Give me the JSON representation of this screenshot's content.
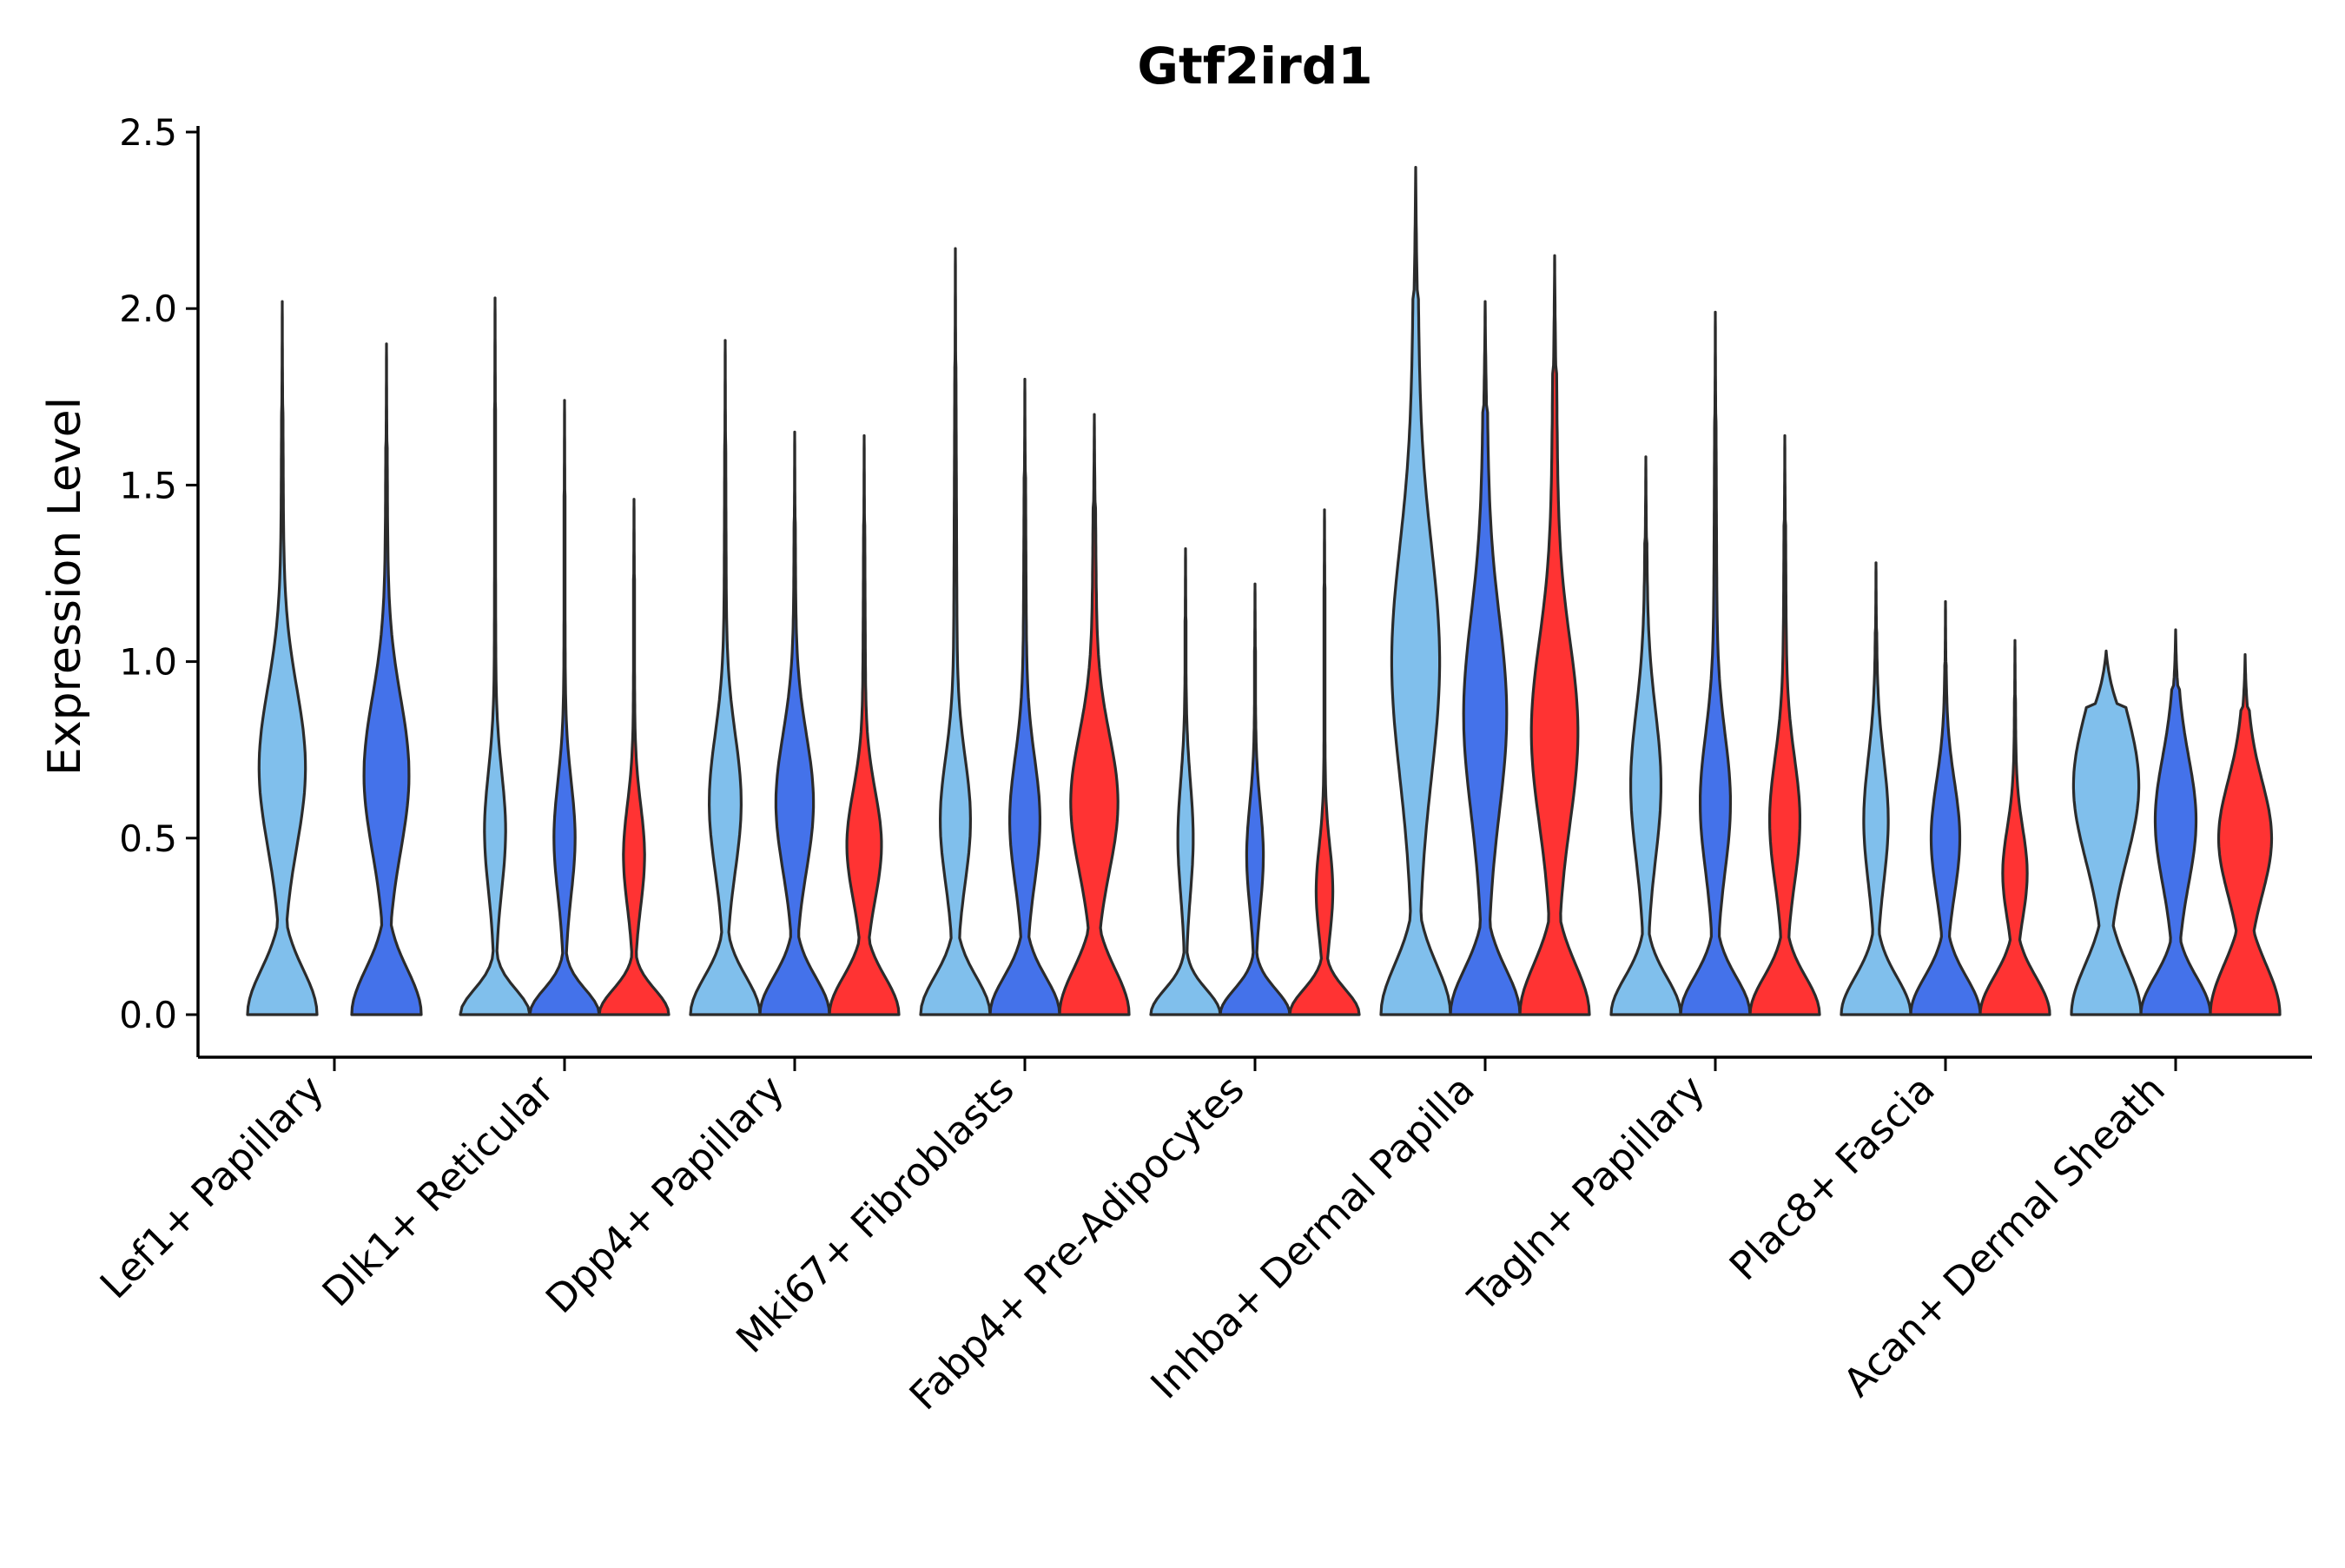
{
  "chart_data": {
    "type": "violin",
    "title": "Gtf2ird1",
    "xlabel": "",
    "ylabel": "Expression Level",
    "ylim": [
      0,
      2.5
    ],
    "yticks": [
      "0.0",
      "0.5",
      "1.0",
      "1.5",
      "2.0",
      "2.5"
    ],
    "ytick_values": [
      0,
      0.5,
      1.0,
      1.5,
      2.0,
      2.5
    ],
    "groups": {
      "light": "#80BFEC",
      "medium": "#4472EA",
      "red": "#FF3333"
    },
    "categories": [
      {
        "label": "Lef1+ Papillary",
        "violins": [
          {
            "group": "light",
            "max": 2.02,
            "peak_low": 0.18,
            "mode": 0.7,
            "mode_strength": 0.62,
            "tail": 0.12
          },
          {
            "group": "medium",
            "max": 1.9,
            "peak_low": 0.18,
            "mode": 0.68,
            "mode_strength": 0.6,
            "tail": 0.12
          }
        ]
      },
      {
        "label": "Dlk1+ Reticular",
        "violins": [
          {
            "group": "light",
            "max": 2.03,
            "peak_low": 0.1,
            "mode": 0.52,
            "mode_strength": 0.28,
            "tail": 0.06
          },
          {
            "group": "medium",
            "max": 1.74,
            "peak_low": 0.1,
            "mode": 0.5,
            "mode_strength": 0.28,
            "tail": 0.06
          },
          {
            "group": "red",
            "max": 1.46,
            "peak_low": 0.1,
            "mode": 0.45,
            "mode_strength": 0.28,
            "tail": 0.06
          }
        ]
      },
      {
        "label": "Dpp4+ Papillary",
        "violins": [
          {
            "group": "light",
            "max": 1.91,
            "peak_low": 0.15,
            "mode": 0.6,
            "mode_strength": 0.42,
            "tail": 0.1
          },
          {
            "group": "medium",
            "max": 1.65,
            "peak_low": 0.15,
            "mode": 0.6,
            "mode_strength": 0.5,
            "tail": 0.1
          },
          {
            "group": "red",
            "max": 1.64,
            "peak_low": 0.15,
            "mode": 0.48,
            "mode_strength": 0.45,
            "tail": 0.12
          }
        ]
      },
      {
        "label": "Mki67+ Fibroblasts",
        "violins": [
          {
            "group": "light",
            "max": 2.17,
            "peak_low": 0.15,
            "mode": 0.55,
            "mode_strength": 0.38,
            "tail": 0.14
          },
          {
            "group": "medium",
            "max": 1.8,
            "peak_low": 0.15,
            "mode": 0.55,
            "mode_strength": 0.38,
            "tail": 0.14
          },
          {
            "group": "red",
            "max": 1.7,
            "peak_low": 0.18,
            "mode": 0.6,
            "mode_strength": 0.6,
            "tail": 0.2
          }
        ]
      },
      {
        "label": "Fabp4+ Pre-Adipocytes",
        "violins": [
          {
            "group": "light",
            "max": 1.32,
            "peak_low": 0.1,
            "mode": 0.5,
            "mode_strength": 0.2,
            "tail": 0.05
          },
          {
            "group": "medium",
            "max": 1.22,
            "peak_low": 0.1,
            "mode": 0.45,
            "mode_strength": 0.22,
            "tail": 0.05
          },
          {
            "group": "red",
            "max": 1.43,
            "peak_low": 0.1,
            "mode": 0.35,
            "mode_strength": 0.22,
            "tail": 0.05
          }
        ]
      },
      {
        "label": "Inhba+ Dermal Papilla",
        "violins": [
          {
            "group": "light",
            "max": 2.4,
            "peak_low": 0.2,
            "mode": 1.0,
            "mode_strength": 0.55,
            "tail": 0.35
          },
          {
            "group": "medium",
            "max": 2.02,
            "peak_low": 0.18,
            "mode": 0.85,
            "mode_strength": 0.5,
            "tail": 0.3
          },
          {
            "group": "red",
            "max": 2.15,
            "peak_low": 0.2,
            "mode": 0.8,
            "mode_strength": 0.55,
            "tail": 0.3
          }
        ]
      },
      {
        "label": "Tagln+ Papillary",
        "violins": [
          {
            "group": "light",
            "max": 1.58,
            "peak_low": 0.15,
            "mode": 0.65,
            "mode_strength": 0.38,
            "tail": 0.14
          },
          {
            "group": "medium",
            "max": 1.99,
            "peak_low": 0.15,
            "mode": 0.6,
            "mode_strength": 0.38,
            "tail": 0.14
          },
          {
            "group": "red",
            "max": 1.64,
            "peak_low": 0.15,
            "mode": 0.55,
            "mode_strength": 0.38,
            "tail": 0.14
          }
        ]
      },
      {
        "label": "Plac8+ Fascia",
        "violins": [
          {
            "group": "light",
            "max": 1.28,
            "peak_low": 0.15,
            "mode": 0.55,
            "mode_strength": 0.32,
            "tail": 0.08
          },
          {
            "group": "medium",
            "max": 1.17,
            "peak_low": 0.15,
            "mode": 0.5,
            "mode_strength": 0.38,
            "tail": 0.08
          },
          {
            "group": "red",
            "max": 1.06,
            "peak_low": 0.15,
            "mode": 0.4,
            "mode_strength": 0.32,
            "tail": 0.08
          }
        ]
      },
      {
        "label": "Acan+ Dermal Sheath",
        "violins": [
          {
            "group": "light",
            "max": 1.03,
            "peak_low": 0.2,
            "mode": 0.65,
            "mode_strength": 0.82,
            "tail": 0.3
          },
          {
            "group": "medium",
            "max": 1.09,
            "peak_low": 0.15,
            "mode": 0.55,
            "mode_strength": 0.5,
            "tail": 0.22
          },
          {
            "group": "red",
            "max": 1.02,
            "peak_low": 0.2,
            "mode": 0.5,
            "mode_strength": 0.65,
            "tail": 0.28
          }
        ]
      }
    ]
  }
}
